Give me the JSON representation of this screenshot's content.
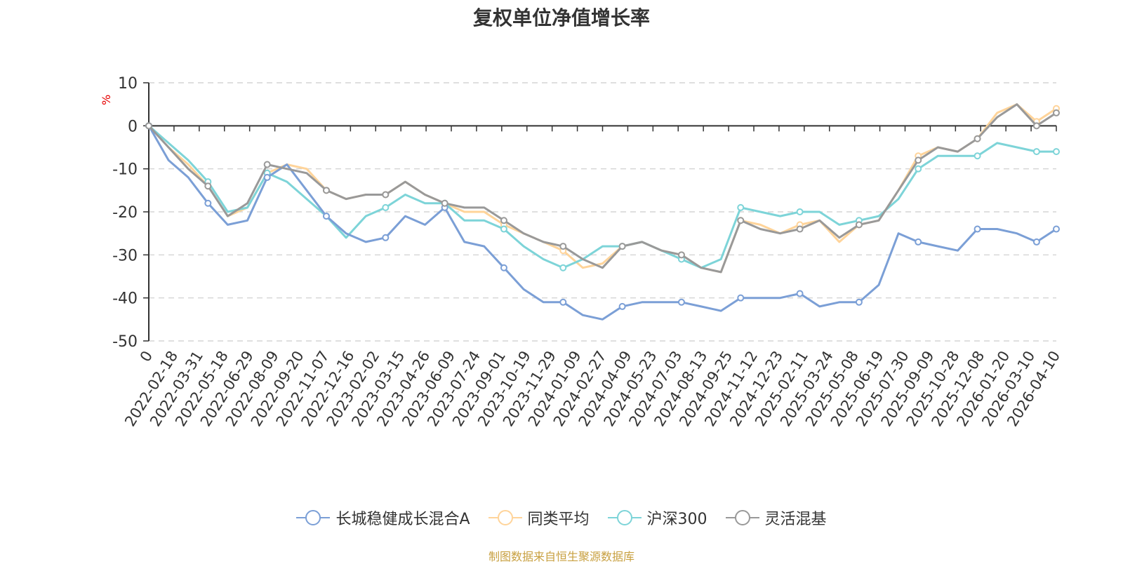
{
  "chart_data": {
    "type": "line",
    "title": "复权单位净值增长率",
    "ylabel": "%",
    "ylim": [
      -50,
      10
    ],
    "yticks": [
      10,
      0,
      -10,
      -20,
      -30,
      -40,
      -50
    ],
    "grid": true,
    "legend_position": "bottom",
    "source_note": "制图数据来自恒生聚源数据库",
    "x_tick_labels": [
      "0",
      "2022-02-18",
      "2022-03-31",
      "2022-05-18",
      "2022-06-29",
      "2022-08-09",
      "2022-09-20",
      "2022-11-07",
      "2022-12-16",
      "2023-02-02",
      "2023-03-15",
      "2023-04-26",
      "2023-06-09",
      "2023-07-24",
      "2023-09-01",
      "2023-10-19",
      "2023-11-29",
      "2024-01-09",
      "2024-02-27",
      "2024-04-09",
      "2024-05-23",
      "2024-07-03",
      "2024-08-13",
      "2024-09-25",
      "2024-11-12",
      "2024-12-23",
      "2025-02-11",
      "2025-03-24",
      "2025-05-08",
      "2025-06-19",
      "2025-07-30",
      "2025-09-09",
      "2025-10-28",
      "2025-12-08",
      "2026-01-20",
      "2026-03-10",
      "2026-04-10"
    ],
    "series": [
      {
        "name": "长城稳健成长混合A",
        "color": "#7b9fd6",
        "values": [
          0,
          -8,
          -12,
          -18,
          -23,
          -22,
          -12,
          -9,
          -15,
          -21,
          -25,
          -27,
          -26,
          -21,
          -23,
          -19,
          -27,
          -28,
          -33,
          -38,
          -41,
          -41,
          -44,
          -45,
          -42,
          -41,
          -41,
          -41,
          -42,
          -43,
          -40,
          -40,
          -40,
          -39,
          -42,
          -41,
          -41,
          -37,
          -25,
          -27,
          -28,
          -29,
          -24,
          -24,
          -25,
          -27,
          -24
        ]
      },
      {
        "name": "同类平均",
        "color": "#ffd49a",
        "values": [
          0,
          -5,
          -9,
          -14,
          -21,
          -19,
          -11,
          -9,
          -10,
          -15,
          -17,
          -16,
          -16,
          -13,
          -16,
          -18,
          -20,
          -20,
          -23,
          -25,
          -27,
          -29,
          -33,
          -32,
          -28,
          -27,
          -29,
          -30,
          -33,
          -34,
          -22,
          -23,
          -25,
          -23,
          -22,
          -27,
          -23,
          -22,
          -15,
          -7,
          -5,
          -6,
          -3,
          3,
          5,
          1,
          4
        ]
      },
      {
        "name": "沪深300",
        "color": "#7dd4d8",
        "values": [
          0,
          -4,
          -8,
          -13,
          -20,
          -19,
          -11,
          -13,
          -17,
          -21,
          -26,
          -21,
          -19,
          -16,
          -18,
          -18,
          -22,
          -22,
          -24,
          -28,
          -31,
          -33,
          -31,
          -28,
          -28,
          -27,
          -29,
          -31,
          -33,
          -31,
          -19,
          -20,
          -21,
          -20,
          -20,
          -23,
          -22,
          -21,
          -17,
          -10,
          -7,
          -7,
          -7,
          -4,
          -5,
          -6,
          -6
        ]
      },
      {
        "name": "灵活混基",
        "color": "#999999",
        "values": [
          0,
          -5,
          -10,
          -14,
          -21,
          -18,
          -9,
          -10,
          -11,
          -15,
          -17,
          -16,
          -16,
          -13,
          -16,
          -18,
          -19,
          -19,
          -22,
          -25,
          -27,
          -28,
          -31,
          -33,
          -28,
          -27,
          -29,
          -30,
          -33,
          -34,
          -22,
          -24,
          -25,
          -24,
          -22,
          -26,
          -23,
          -22,
          -15,
          -8,
          -5,
          -6,
          -3,
          2,
          5,
          0,
          3
        ]
      }
    ]
  }
}
